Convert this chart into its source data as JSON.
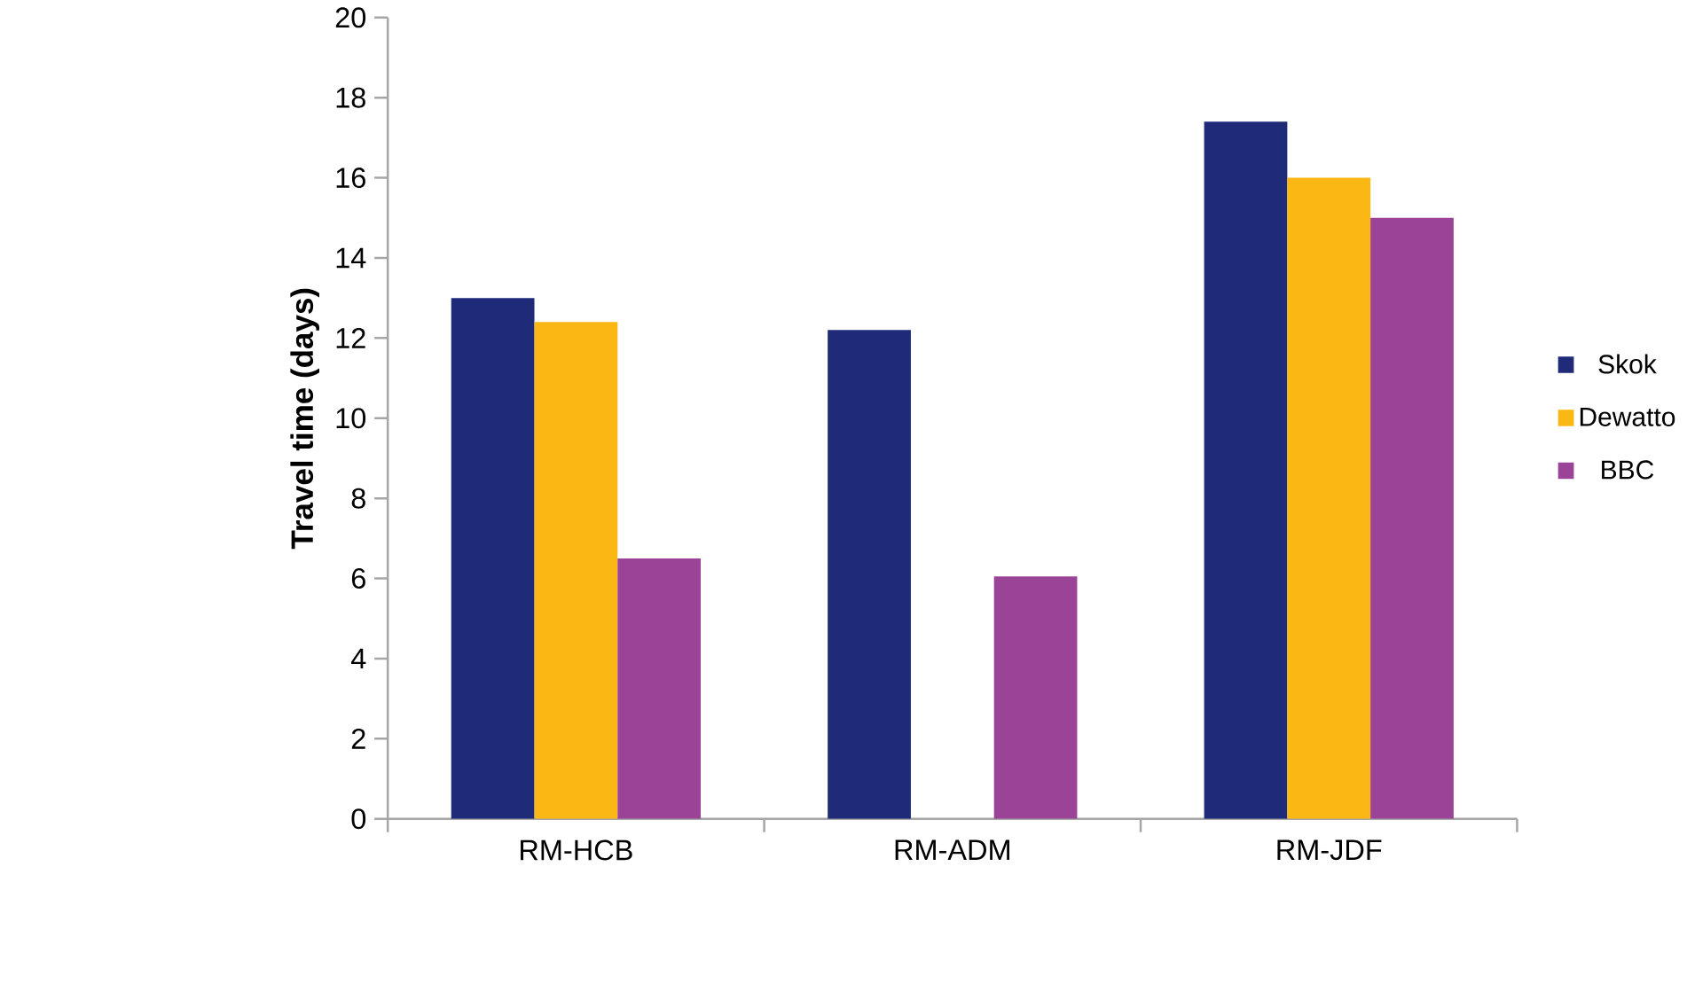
{
  "chart_data": {
    "type": "bar",
    "ylabel": "Travel time (days)",
    "categories": [
      "RM-HCB",
      "RM-ADM",
      "RM-JDF"
    ],
    "series": [
      {
        "name": "Skok",
        "color": "#1f2a78",
        "values": [
          13.0,
          12.2,
          17.4
        ]
      },
      {
        "name": "Dewatto",
        "color": "#fbb714",
        "values": [
          12.4,
          null,
          16.0
        ]
      },
      {
        "name": "BBC",
        "color": "#9b4497",
        "values": [
          6.5,
          6.05,
          15.0
        ]
      }
    ],
    "ylim": [
      0,
      20
    ],
    "yticks": [
      0,
      2,
      4,
      6,
      8,
      10,
      12,
      14,
      16,
      18,
      20
    ],
    "grid": false,
    "legend": "right"
  }
}
